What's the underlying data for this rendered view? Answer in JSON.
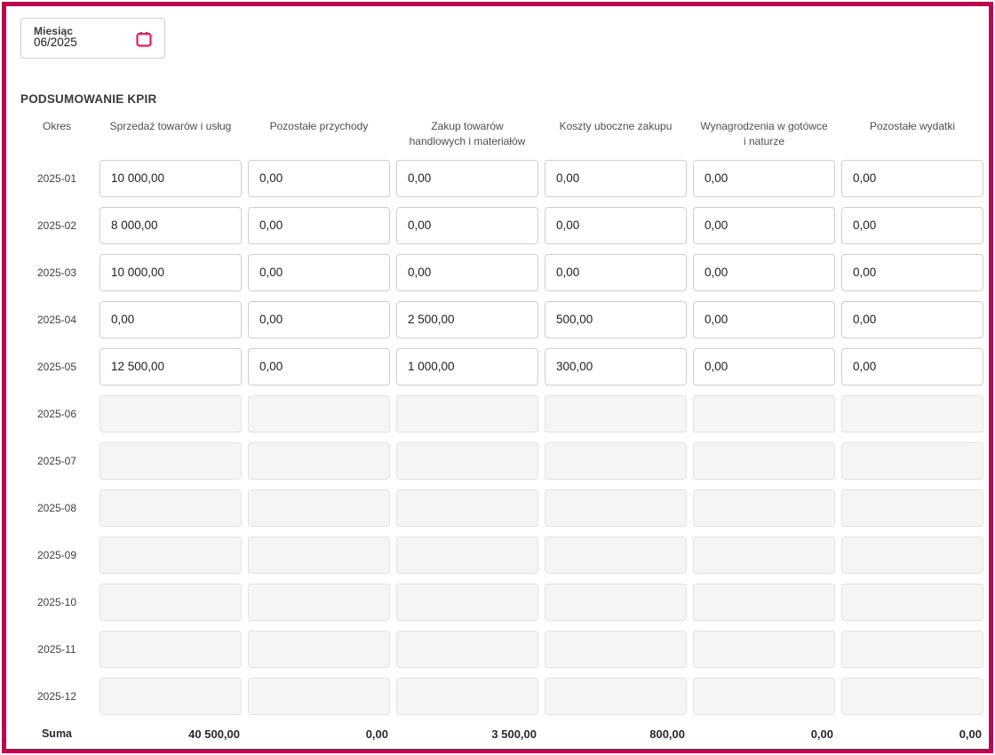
{
  "colors": {
    "frame_accent": "#bd0550",
    "icon_pink": "#e5195f"
  },
  "month_picker": {
    "label": "Miesiąc",
    "value": "06/2025"
  },
  "section_title": "PODSUMOWANIE KPIR",
  "table": {
    "period_header": "Okres",
    "columns": [
      "Sprzedaż towarów i usług",
      "Pozostałe przychody",
      "Zakup towarów handlowych i materiałów",
      "Koszty uboczne zakupu",
      "Wynagrodzenia w gotówce i naturze",
      "Pozostałe wydatki"
    ],
    "rows": [
      {
        "period": "2025-01",
        "editable": true,
        "values": [
          "10 000,00",
          "0,00",
          "0,00",
          "0,00",
          "0,00",
          "0,00"
        ]
      },
      {
        "period": "2025-02",
        "editable": true,
        "values": [
          "8 000,00",
          "0,00",
          "0,00",
          "0,00",
          "0,00",
          "0,00"
        ]
      },
      {
        "period": "2025-03",
        "editable": true,
        "values": [
          "10 000,00",
          "0,00",
          "0,00",
          "0,00",
          "0,00",
          "0,00"
        ]
      },
      {
        "period": "2025-04",
        "editable": true,
        "values": [
          "0,00",
          "0,00",
          "2 500,00",
          "500,00",
          "0,00",
          "0,00"
        ]
      },
      {
        "period": "2025-05",
        "editable": true,
        "values": [
          "12 500,00",
          "0,00",
          "1 000,00",
          "300,00",
          "0,00",
          "0,00"
        ]
      },
      {
        "period": "2025-06",
        "editable": false,
        "values": [
          "",
          "",
          "",
          "",
          "",
          ""
        ]
      },
      {
        "period": "2025-07",
        "editable": false,
        "values": [
          "",
          "",
          "",
          "",
          "",
          ""
        ]
      },
      {
        "period": "2025-08",
        "editable": false,
        "values": [
          "",
          "",
          "",
          "",
          "",
          ""
        ]
      },
      {
        "period": "2025-09",
        "editable": false,
        "values": [
          "",
          "",
          "",
          "",
          "",
          ""
        ]
      },
      {
        "period": "2025-10",
        "editable": false,
        "values": [
          "",
          "",
          "",
          "",
          "",
          ""
        ]
      },
      {
        "period": "2025-11",
        "editable": false,
        "values": [
          "",
          "",
          "",
          "",
          "",
          ""
        ]
      },
      {
        "period": "2025-12",
        "editable": false,
        "values": [
          "",
          "",
          "",
          "",
          "",
          ""
        ]
      }
    ],
    "sum_label": "Suma",
    "sums": [
      "40 500,00",
      "0,00",
      "3 500,00",
      "800,00",
      "0,00",
      "0,00"
    ]
  }
}
